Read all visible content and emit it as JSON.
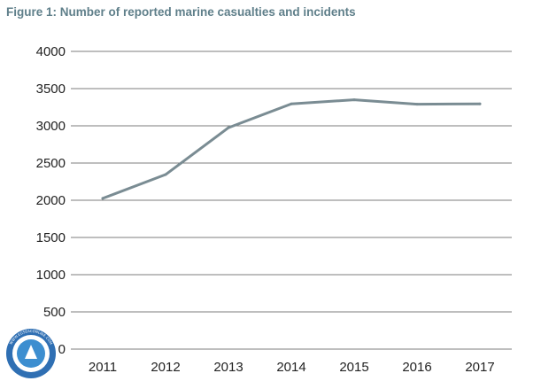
{
  "chart_data": {
    "type": "line",
    "title": "Figure 1: Number of reported marine casualties and incidents",
    "xlabel": "",
    "ylabel": "",
    "categories": [
      "2011",
      "2012",
      "2013",
      "2014",
      "2015",
      "2016",
      "2017"
    ],
    "series": [
      {
        "name": "Marine casualties and incidents",
        "values": [
          2025,
          2345,
          2975,
          3295,
          3350,
          3290,
          3295
        ],
        "color": "#7a8c93"
      }
    ],
    "ylim": [
      0,
      4000
    ],
    "yticks": [
      0,
      500,
      1000,
      1500,
      2000,
      2500,
      3000,
      3500,
      4000
    ],
    "grid": true,
    "legend": "none"
  },
  "colors": {
    "title": "#5f7f8a",
    "grid": "#7d7d7d",
    "text": "#222222",
    "watermark": "#2f6fb3"
  },
  "watermark": {
    "icon": "seal-logo-icon",
    "text": "WWW.EGSEACONLINE.COM"
  }
}
